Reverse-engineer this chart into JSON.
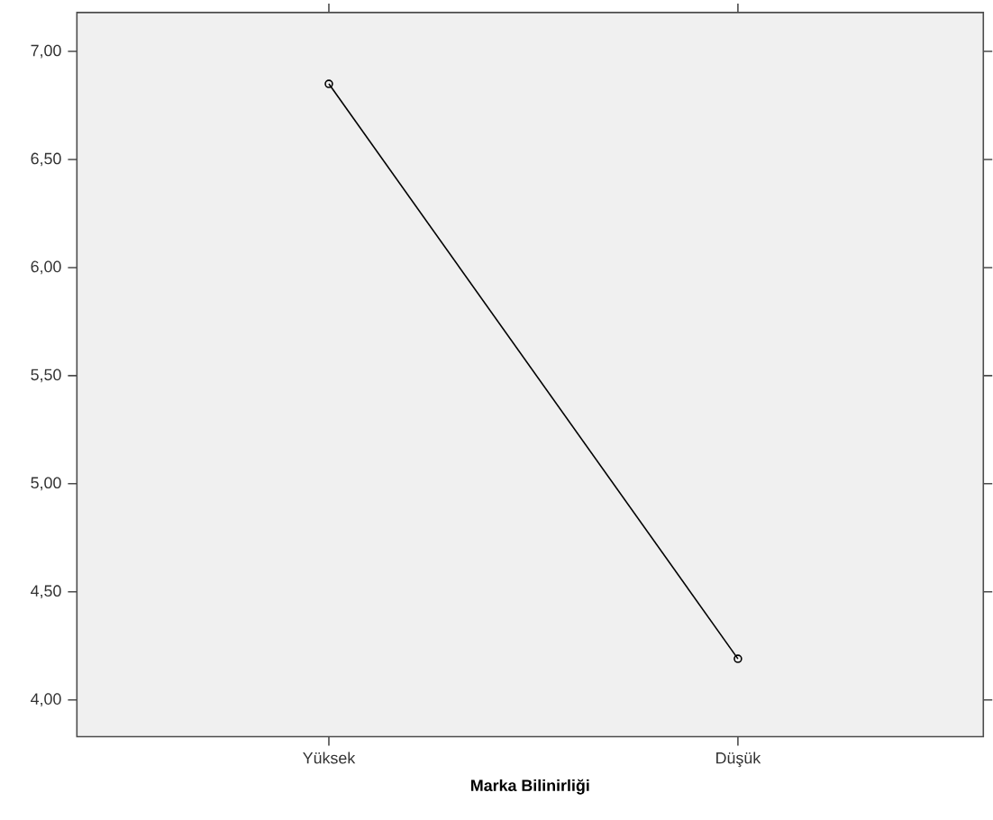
{
  "chart_data": {
    "type": "line",
    "xlabel": "Marka Bilinirliği",
    "categories": [
      "Yüksek",
      "Düşük"
    ],
    "series": [
      {
        "color": "#000000",
        "values": [
          6.85,
          4.19
        ]
      }
    ],
    "marker": "circle",
    "ylim": [
      3.83,
      7.18
    ],
    "yticks": [
      {
        "value": 4,
        "label": "4,00"
      },
      {
        "value": 4.5,
        "label": "4,50"
      },
      {
        "value": 5,
        "label": "5,00"
      },
      {
        "value": 5.5,
        "label": "5,50"
      },
      {
        "value": 6,
        "label": "6,00"
      },
      {
        "value": 6.5,
        "label": "6,50"
      },
      {
        "value": 7,
        "label": "7,00"
      }
    ]
  }
}
